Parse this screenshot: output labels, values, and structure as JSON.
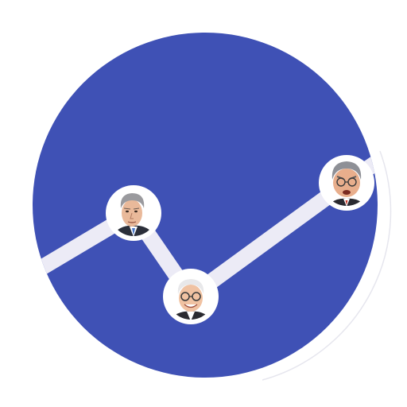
{
  "colors": {
    "background": "#ffffff",
    "circle": "#3f51b5",
    "line": "#ecebf6",
    "avatar_ring": "#ffffff"
  },
  "illustration": {
    "description_icon": "trend-line-with-investor-caricatures",
    "points": [
      {
        "name": "line-start",
        "avatar": null
      },
      {
        "name": "investor-1",
        "avatar": "caricature-man-gray-hair-suit-icon"
      },
      {
        "name": "investor-2",
        "avatar": "caricature-man-glasses-white-hair-icon"
      },
      {
        "name": "investor-3",
        "avatar": "caricature-man-frowning-glasses-icon"
      }
    ]
  }
}
